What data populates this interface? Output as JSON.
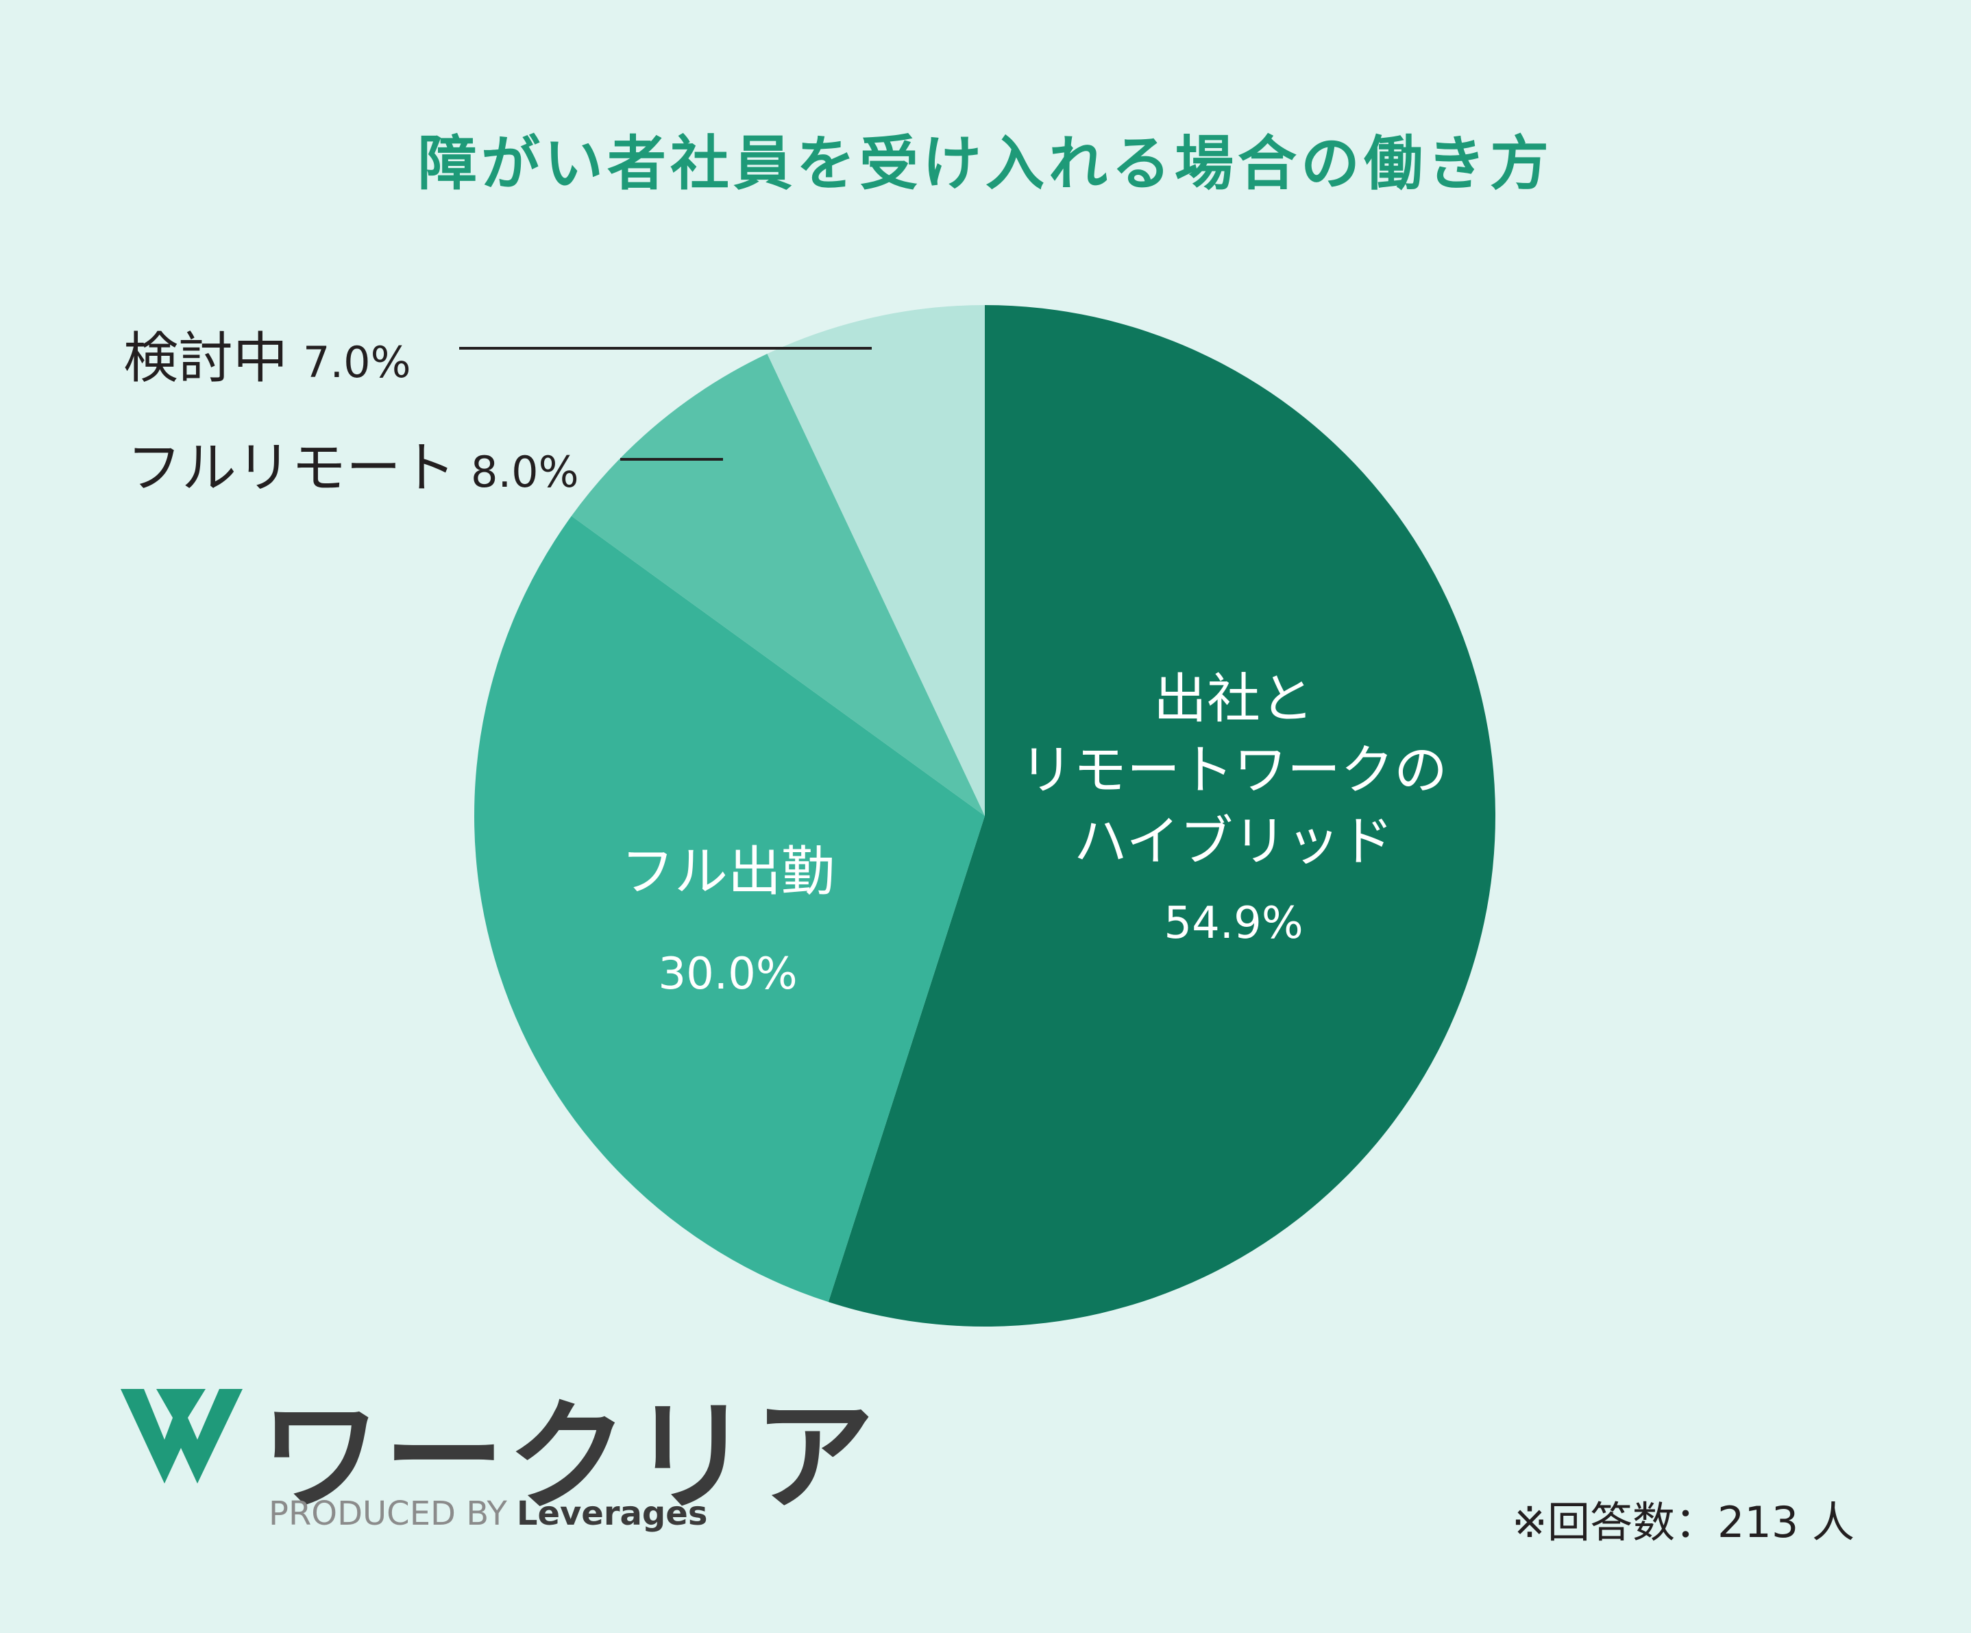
{
  "chart_data": {
    "type": "pie",
    "title": "障がい者社員を受け入れる場合の働き方",
    "start": "12 o'clock, clockwise",
    "slices": [
      {
        "name_lines": [
          "出社と",
          "リモートワークの",
          "ハイブリッド"
        ],
        "value": 54.9,
        "label": "54.9%",
        "color": "#0e775c"
      },
      {
        "name_lines": [
          "フル出勤"
        ],
        "value": 30.0,
        "label": "30.0%",
        "color": "#38b399"
      },
      {
        "name_lines": [
          "フルリモート"
        ],
        "value": 8.0,
        "label": "8.0%",
        "color": "#59c2aa"
      },
      {
        "name_lines": [
          "検討中"
        ],
        "value": 7.0,
        "label": "7.0%",
        "color": "#b5e4db"
      }
    ]
  },
  "labels": {
    "hybrid": {
      "line1": "出社と",
      "line2": "リモートワークの",
      "line3": "ハイブリッド",
      "pct": "54.9%"
    },
    "full_office": {
      "name": "フル出勤",
      "pct": "30.0%"
    },
    "full_remote": {
      "name": "フルリモート",
      "pct": "8.0%"
    },
    "considering": {
      "name": "検討中",
      "pct": "7.0%"
    }
  },
  "footer": {
    "logo_text": "ワークリア",
    "produced_by": "PRODUCED BY",
    "brand": "Leverages",
    "respondents": "※回答数：213 人"
  },
  "colors": {
    "background": "#e1f4f1",
    "title": "#1e9a78",
    "logo_green": "#1f9a7a",
    "leader_line": "#231f20"
  }
}
